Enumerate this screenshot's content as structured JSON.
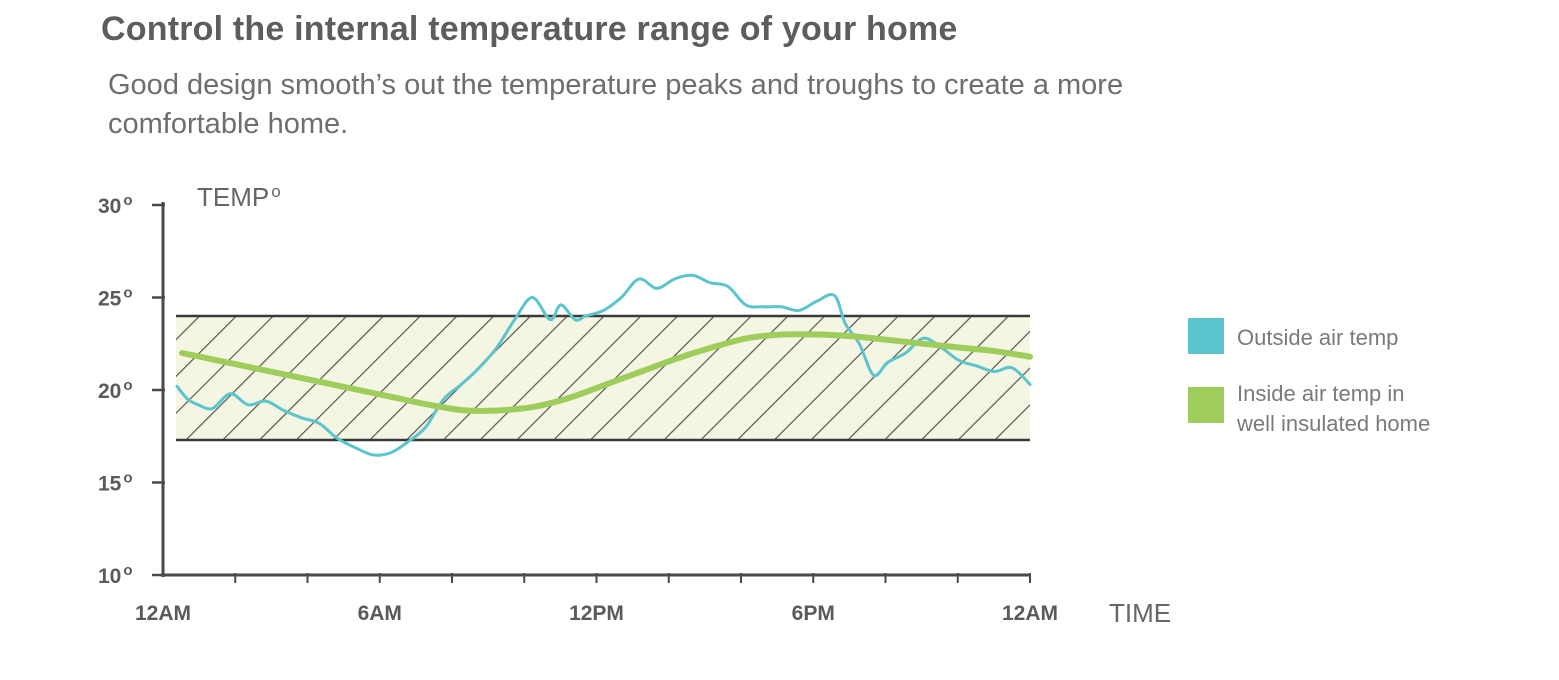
{
  "header": {
    "title": "Control the internal temperature range of your home",
    "subtitle": "Good design smooth’s out the temperature peaks and troughs to create a more comfortable home."
  },
  "chart_data": {
    "type": "line",
    "ylabel": "TEMP",
    "ylabel_suffix": "o",
    "xlabel": "TIME",
    "ylim": [
      10,
      30
    ],
    "xlim": [
      0,
      24
    ],
    "y_ticks": [
      {
        "value": 30,
        "label": "30"
      },
      {
        "value": 25,
        "label": "25"
      },
      {
        "value": 20,
        "label": "20"
      },
      {
        "value": 15,
        "label": "15"
      },
      {
        "value": 10,
        "label": "10"
      }
    ],
    "degree_mark": "o",
    "x_ticks": [
      {
        "value": 0,
        "label": "12AM"
      },
      {
        "value": 6,
        "label": "6AM"
      },
      {
        "value": 12,
        "label": "12PM"
      },
      {
        "value": 18,
        "label": "6PM"
      },
      {
        "value": 24,
        "label": "12AM"
      }
    ],
    "comfort_band": {
      "low": 17.3,
      "high": 24.0,
      "fill": "#f4f5e2",
      "hatch_color": "#3a3a3a"
    },
    "legend_position": "right",
    "series": [
      {
        "name": "Outside air temp",
        "color": "#5bc4cc",
        "x": [
          0,
          0.3,
          0.6,
          1,
          1.5,
          2,
          2.5,
          3,
          3.5,
          4,
          4.5,
          5,
          5.5,
          6,
          6.5,
          7,
          7.5,
          8,
          8.5,
          9,
          9.5,
          10,
          10.5,
          10.8,
          11.2,
          11.5,
          12,
          12.5,
          13,
          13.5,
          14,
          14.5,
          15,
          15.5,
          16,
          16.5,
          17,
          17.5,
          18,
          18.5,
          18.8,
          19.2,
          19.6,
          20,
          20.5,
          21,
          21.5,
          22,
          22.5,
          23,
          23.5,
          24
        ],
        "y": [
          20.2,
          19.5,
          19.2,
          19.0,
          19.8,
          19.2,
          19.4,
          18.9,
          18.5,
          18.2,
          17.4,
          16.9,
          16.5,
          16.6,
          17.2,
          18.0,
          19.5,
          20.3,
          21.2,
          22.3,
          23.8,
          25.0,
          23.8,
          24.6,
          23.8,
          24.0,
          24.3,
          25.0,
          26.0,
          25.5,
          26.0,
          26.2,
          25.8,
          25.6,
          24.6,
          24.5,
          24.5,
          24.3,
          24.8,
          25.1,
          23.6,
          22.5,
          20.8,
          21.5,
          22.0,
          22.8,
          22.3,
          21.6,
          21.3,
          21.0,
          21.2,
          20.3
        ]
      },
      {
        "name": "Inside air temp in well insulated home",
        "name_lines": [
          "Inside air temp in",
          "well insulated home"
        ],
        "color": "#9fcd5c",
        "x": [
          0,
          1,
          2,
          3,
          4,
          5,
          6,
          7,
          8,
          9,
          10,
          11,
          12,
          13,
          14,
          15,
          16,
          17,
          18,
          19,
          20,
          21,
          22,
          23,
          24
        ],
        "y": [
          22.0,
          21.6,
          21.2,
          20.8,
          20.4,
          20.0,
          19.6,
          19.2,
          18.9,
          18.9,
          19.1,
          19.6,
          20.3,
          21.0,
          21.7,
          22.3,
          22.8,
          23.0,
          23.0,
          22.9,
          22.7,
          22.5,
          22.3,
          22.1,
          21.8
        ]
      }
    ]
  }
}
